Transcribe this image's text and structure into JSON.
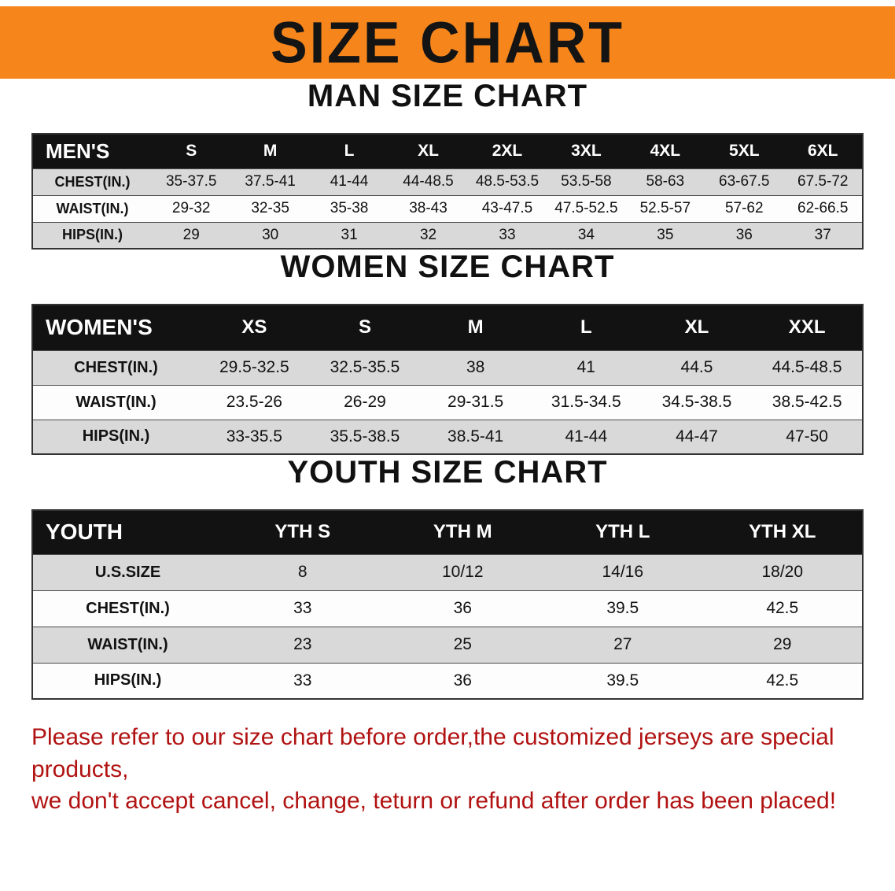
{
  "banner": {
    "title": "SIZE CHART",
    "bg_color": "#F6861C"
  },
  "sections": [
    {
      "heading": "MAN SIZE CHART",
      "table": {
        "corner_label": "MEN'S",
        "columns": [
          "S",
          "M",
          "L",
          "XL",
          "2XL",
          "3XL",
          "4XL",
          "5XL",
          "6XL"
        ],
        "rows": [
          {
            "label": "CHEST(IN.)",
            "values": [
              "35-37.5",
              "37.5-41",
              "41-44",
              "44-48.5",
              "48.5-53.5",
              "53.5-58",
              "58-63",
              "63-67.5",
              "67.5-72"
            ]
          },
          {
            "label": "WAIST(IN.)",
            "values": [
              "29-32",
              "32-35",
              "35-38",
              "38-43",
              "43-47.5",
              "47.5-52.5",
              "52.5-57",
              "57-62",
              "62-66.5"
            ]
          },
          {
            "label": "HIPS(IN.)",
            "values": [
              "29",
              "30",
              "31",
              "32",
              "33",
              "34",
              "35",
              "36",
              "37"
            ]
          }
        ]
      }
    },
    {
      "heading": "WOMEN SIZE CHART",
      "table": {
        "corner_label": "WOMEN'S",
        "columns": [
          "XS",
          "S",
          "M",
          "L",
          "XL",
          "XXL"
        ],
        "rows": [
          {
            "label": "CHEST(IN.)",
            "values": [
              "29.5-32.5",
              "32.5-35.5",
              "38",
              "41",
              "44.5",
              "44.5-48.5"
            ]
          },
          {
            "label": "WAIST(IN.)",
            "values": [
              "23.5-26",
              "26-29",
              "29-31.5",
              "31.5-34.5",
              "34.5-38.5",
              "38.5-42.5"
            ]
          },
          {
            "label": "HIPS(IN.)",
            "values": [
              "33-35.5",
              "35.5-38.5",
              "38.5-41",
              "41-44",
              "44-47",
              "47-50"
            ]
          }
        ]
      }
    },
    {
      "heading": "YOUTH SIZE CHART",
      "table": {
        "corner_label": "YOUTH",
        "columns": [
          "YTH S",
          "YTH M",
          "YTH L",
          "YTH XL"
        ],
        "rows": [
          {
            "label": "U.S.SIZE",
            "values": [
              "8",
              "10/12",
              "14/16",
              "18/20"
            ]
          },
          {
            "label": "CHEST(IN.)",
            "values": [
              "33",
              "36",
              "39.5",
              "42.5"
            ]
          },
          {
            "label": "WAIST(IN.)",
            "values": [
              "23",
              "25",
              "27",
              "29"
            ]
          },
          {
            "label": "HIPS(IN.)",
            "values": [
              "33",
              "36",
              "39.5",
              "42.5"
            ]
          }
        ]
      }
    }
  ],
  "disclaimer": {
    "line1": "Please refer to our size chart before order,the customized jerseys are special products,",
    "line2": "we don't accept cancel, change, teturn or refund after order has been placed!",
    "text_color": "#B11212"
  }
}
